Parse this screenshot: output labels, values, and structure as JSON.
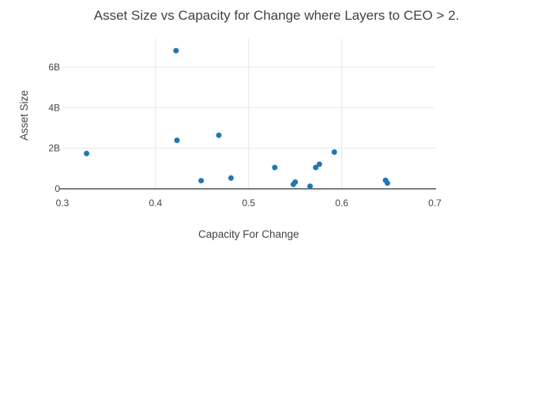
{
  "chart_data": {
    "type": "scatter",
    "title": "Asset Size vs Capacity for Change where Layers to CEO > 2.",
    "xlabel": "Capacity For Change",
    "ylabel": "Asset Size",
    "xlim": [
      0.3,
      0.7
    ],
    "ylim_billions": [
      0,
      7.4
    ],
    "xticks": [
      {
        "value": 0.3,
        "label": "0.3"
      },
      {
        "value": 0.4,
        "label": "0.4"
      },
      {
        "value": 0.5,
        "label": "0.5"
      },
      {
        "value": 0.6,
        "label": "0.6"
      },
      {
        "value": 0.7,
        "label": "0.7"
      }
    ],
    "yticks": [
      {
        "value": 0,
        "label": "0"
      },
      {
        "value": 2,
        "label": "2B"
      },
      {
        "value": 4,
        "label": "4B"
      },
      {
        "value": 6,
        "label": "6B"
      }
    ],
    "grid": true,
    "grid_x_values": [
      0.4,
      0.5,
      0.6
    ],
    "grid_y_values": [
      2,
      4,
      6
    ],
    "legend_position": "none",
    "y_unit": "billions",
    "points": [
      {
        "x": 0.326,
        "y_billions": 1.74
      },
      {
        "x": 0.422,
        "y_billions": 6.81
      },
      {
        "x": 0.423,
        "y_billions": 2.39
      },
      {
        "x": 0.449,
        "y_billions": 0.4
      },
      {
        "x": 0.468,
        "y_billions": 2.64
      },
      {
        "x": 0.481,
        "y_billions": 0.53
      },
      {
        "x": 0.528,
        "y_billions": 1.05
      },
      {
        "x": 0.548,
        "y_billions": 0.22
      },
      {
        "x": 0.55,
        "y_billions": 0.33
      },
      {
        "x": 0.566,
        "y_billions": 0.13
      },
      {
        "x": 0.572,
        "y_billions": 1.05
      },
      {
        "x": 0.576,
        "y_billions": 1.21
      },
      {
        "x": 0.592,
        "y_billions": 1.81
      },
      {
        "x": 0.647,
        "y_billions": 0.42
      },
      {
        "x": 0.649,
        "y_billions": 0.28
      }
    ],
    "colors": {
      "marker": "#1f77b4",
      "gridline": "#e6e6e6",
      "axis_line": "#333333",
      "text": "#444444",
      "background": "#ffffff"
    }
  }
}
